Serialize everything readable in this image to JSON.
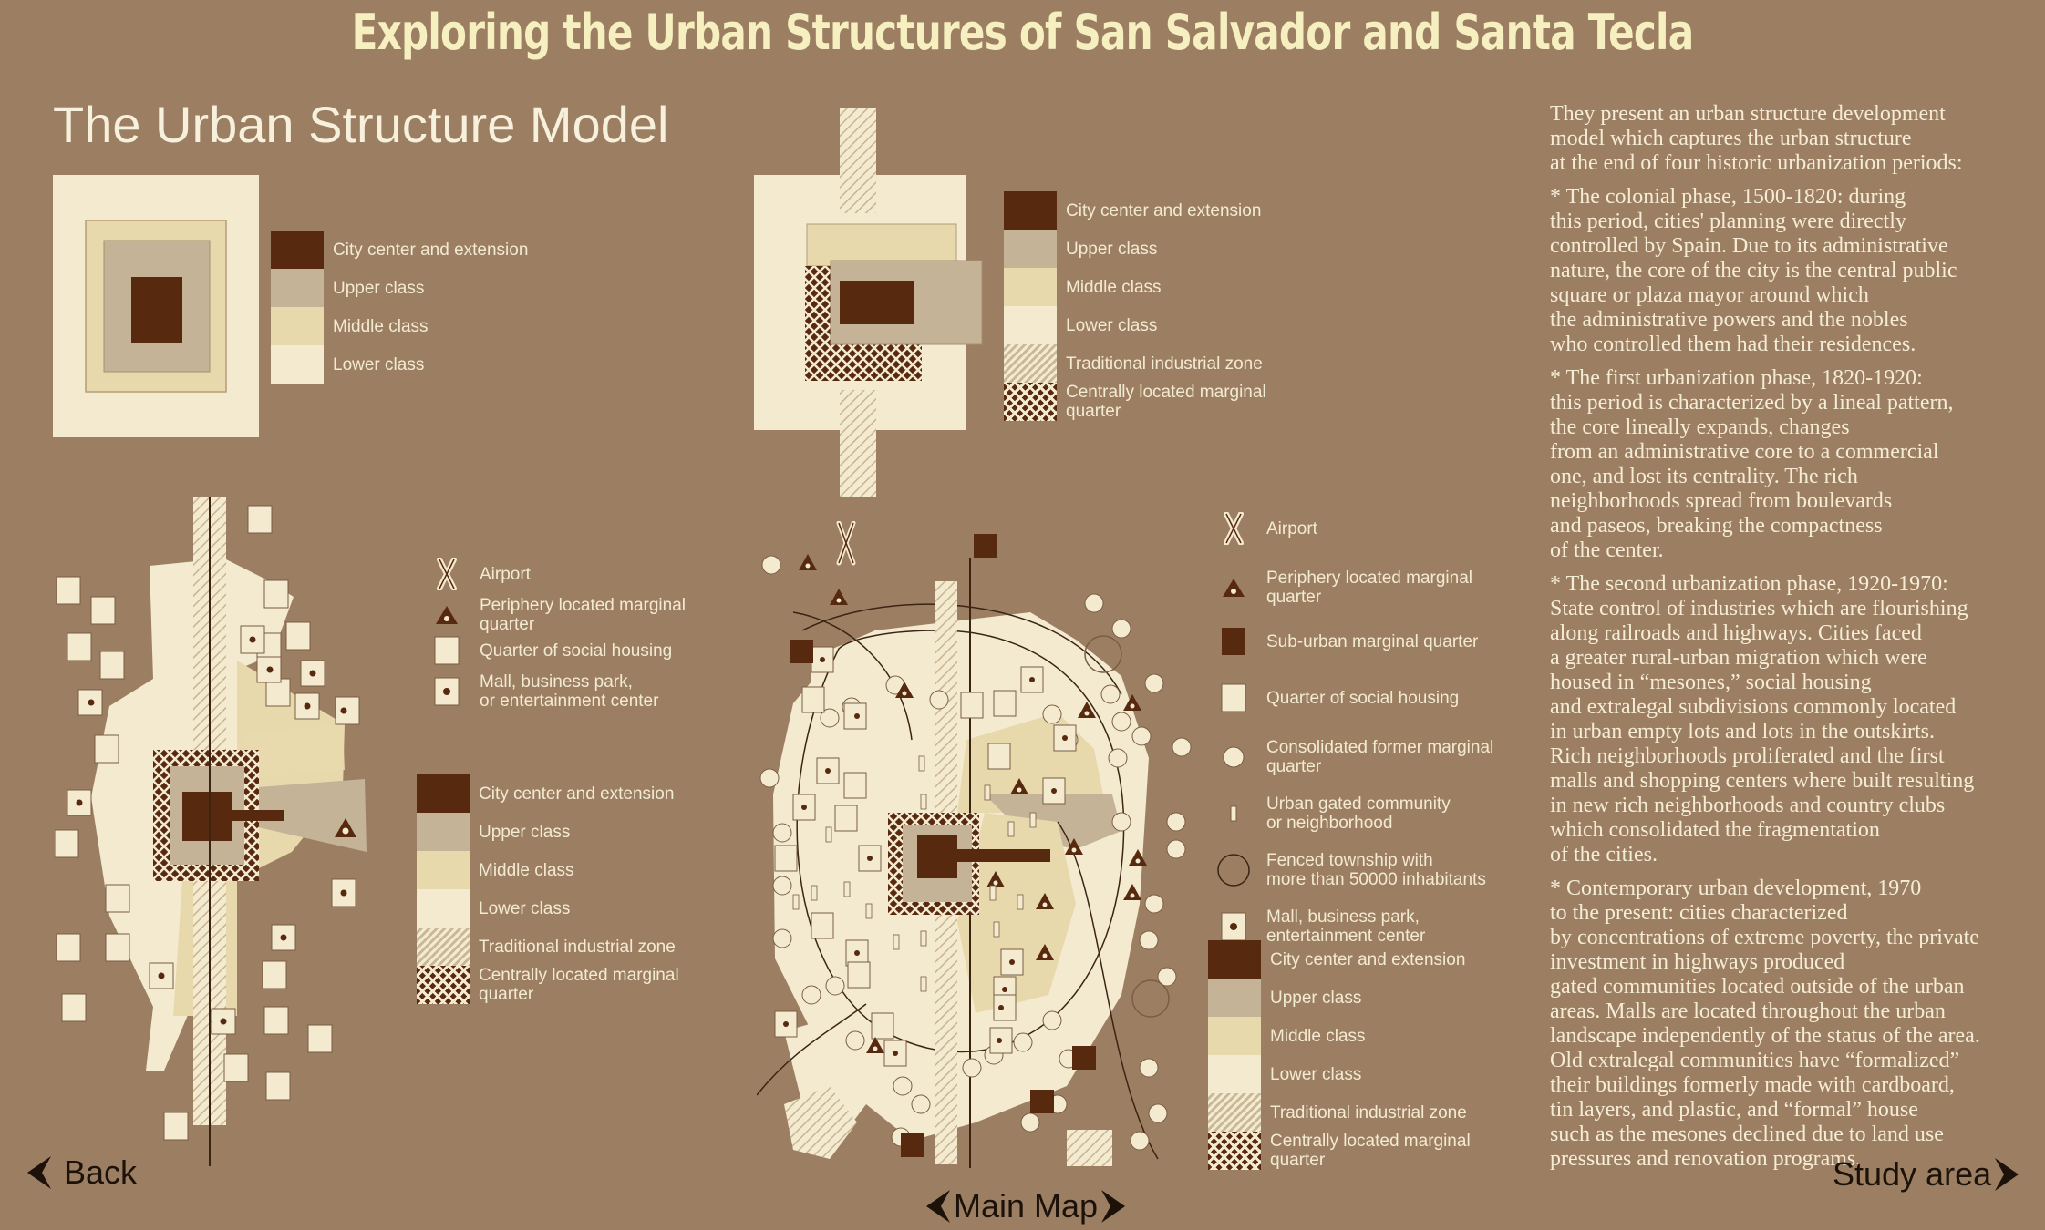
{
  "header": {
    "title": "Exploring the Urban Structures of San Salvador and Santa Tecla"
  },
  "model": {
    "title": "The Urban Structure Model"
  },
  "legend_basic": [
    {
      "label": "City center and extension",
      "class": "s-center"
    },
    {
      "label": "Upper class",
      "class": "s-upper"
    },
    {
      "label": "Middle class",
      "class": "s-middle"
    },
    {
      "label": "Lower class",
      "class": "s-lower"
    }
  ],
  "legend_phase1": [
    {
      "label": "City center and extension",
      "class": "s-center"
    },
    {
      "label": "Upper class",
      "class": "s-upper"
    },
    {
      "label": "Middle class",
      "class": "s-middle"
    },
    {
      "label": "Lower class",
      "class": "s-lower"
    },
    {
      "label": "Traditional industrial zone",
      "class": "s-ind"
    },
    {
      "label": "Centrally located marginal\nquarter",
      "class": "s-marg"
    }
  ],
  "legend_phase2_symbols": [
    {
      "label": "Airport",
      "icon": "airport-icon"
    },
    {
      "label": "Periphery located marginal\nquarter",
      "icon": "triangle-icon"
    },
    {
      "label": "Quarter of social housing",
      "icon": "square-icon"
    },
    {
      "label": "Mall, business park,\nor entertainment center",
      "icon": "mall-icon"
    }
  ],
  "legend_phase2_areas": [
    {
      "label": "City center and extension",
      "class": "s-center"
    },
    {
      "label": "Upper class",
      "class": "s-upper"
    },
    {
      "label": "Middle class",
      "class": "s-middle"
    },
    {
      "label": "Lower class",
      "class": "s-lower"
    },
    {
      "label": "Traditional industrial zone",
      "class": "s-ind"
    },
    {
      "label": "Centrally located marginal\nquarter",
      "class": "s-marg"
    }
  ],
  "legend_contemporary_symbols": [
    {
      "label": "Airport",
      "icon": "airport-icon"
    },
    {
      "label": "Periphery located marginal\nquarter",
      "icon": "triangle-icon"
    },
    {
      "label": "Sub-urban marginal quarter",
      "icon": "dark-square-icon"
    },
    {
      "label": "Quarter of social housing",
      "icon": "square-icon"
    },
    {
      "label": "Consolidated former marginal\nquarter",
      "icon": "circle-icon"
    },
    {
      "label": "Urban gated community\nor neighborhood",
      "icon": "bar-icon"
    },
    {
      "label": "Fenced township with\nmore than 50000 inhabitants",
      "icon": "big-circle-icon"
    },
    {
      "label": "Mall, business park,\nentertainment center",
      "icon": "mall-icon"
    }
  ],
  "legend_contemporary_areas": [
    {
      "label": "City center and extension",
      "class": "s-center"
    },
    {
      "label": "Upper class",
      "class": "s-upper"
    },
    {
      "label": "Middle class",
      "class": "s-middle"
    },
    {
      "label": "Lower class",
      "class": "s-lower"
    },
    {
      "label": "Traditional industrial zone",
      "class": "s-ind"
    },
    {
      "label": "Centrally located marginal\nquarter",
      "class": "s-marg"
    }
  ],
  "description": [
    "They present an urban structure development\nmodel which captures the urban structure\nat the end of four historic urbanization periods:",
    "* The colonial phase, 1500-1820: during\nthis period, cities' planning were directly\ncontrolled by Spain.  Due to its administrative\nnature, the core of the city is the central public\nsquare or plaza mayor  around which\nthe administrative powers and the nobles\nwho controlled them had their residences.",
    "*  The first urbanization phase, 1820-1920:\nthis period is characterized by a lineal pattern,\nthe core lineally expands, changes\nfrom an administrative core to a commercial\none, and lost its centrality.  The rich\nneighborhoods spread from boulevards\nand paseos, breaking the compactness\nof the center.",
    "* The second urbanization phase, 1920-1970:\nState control of industries which are flourishing\nalong railroads and highways.  Cities faced\na greater rural-urban migration which were\nhoused in “mesones,” social housing\nand extralegal subdivisions commonly located\nin urban empty lots and lots in the outskirts.\nRich neighborhoods proliferated and the first\nmalls and shopping centers where built resulting\nin new rich neighborhoods and country clubs\nwhich consolidated the fragmentation\nof the cities.",
    "* Contemporary urban development, 1970\nto the present: cities characterized\nby concentrations of extreme poverty, the private\ninvestment in highways produced\ngated communities located outside of the urban\nareas.  Malls are located throughout the urban\nlandscape independently of the status of the area.\n Old extralegal communities have “formalized”\n their buildings formerly made with cardboard,\n tin layers, and plastic, and “formal” house\n such as the mesones declined due to land use\n pressures and renovation programs."
  ],
  "nav": {
    "back": "Back",
    "main_map": "Main Map",
    "study_area": "Study area"
  }
}
